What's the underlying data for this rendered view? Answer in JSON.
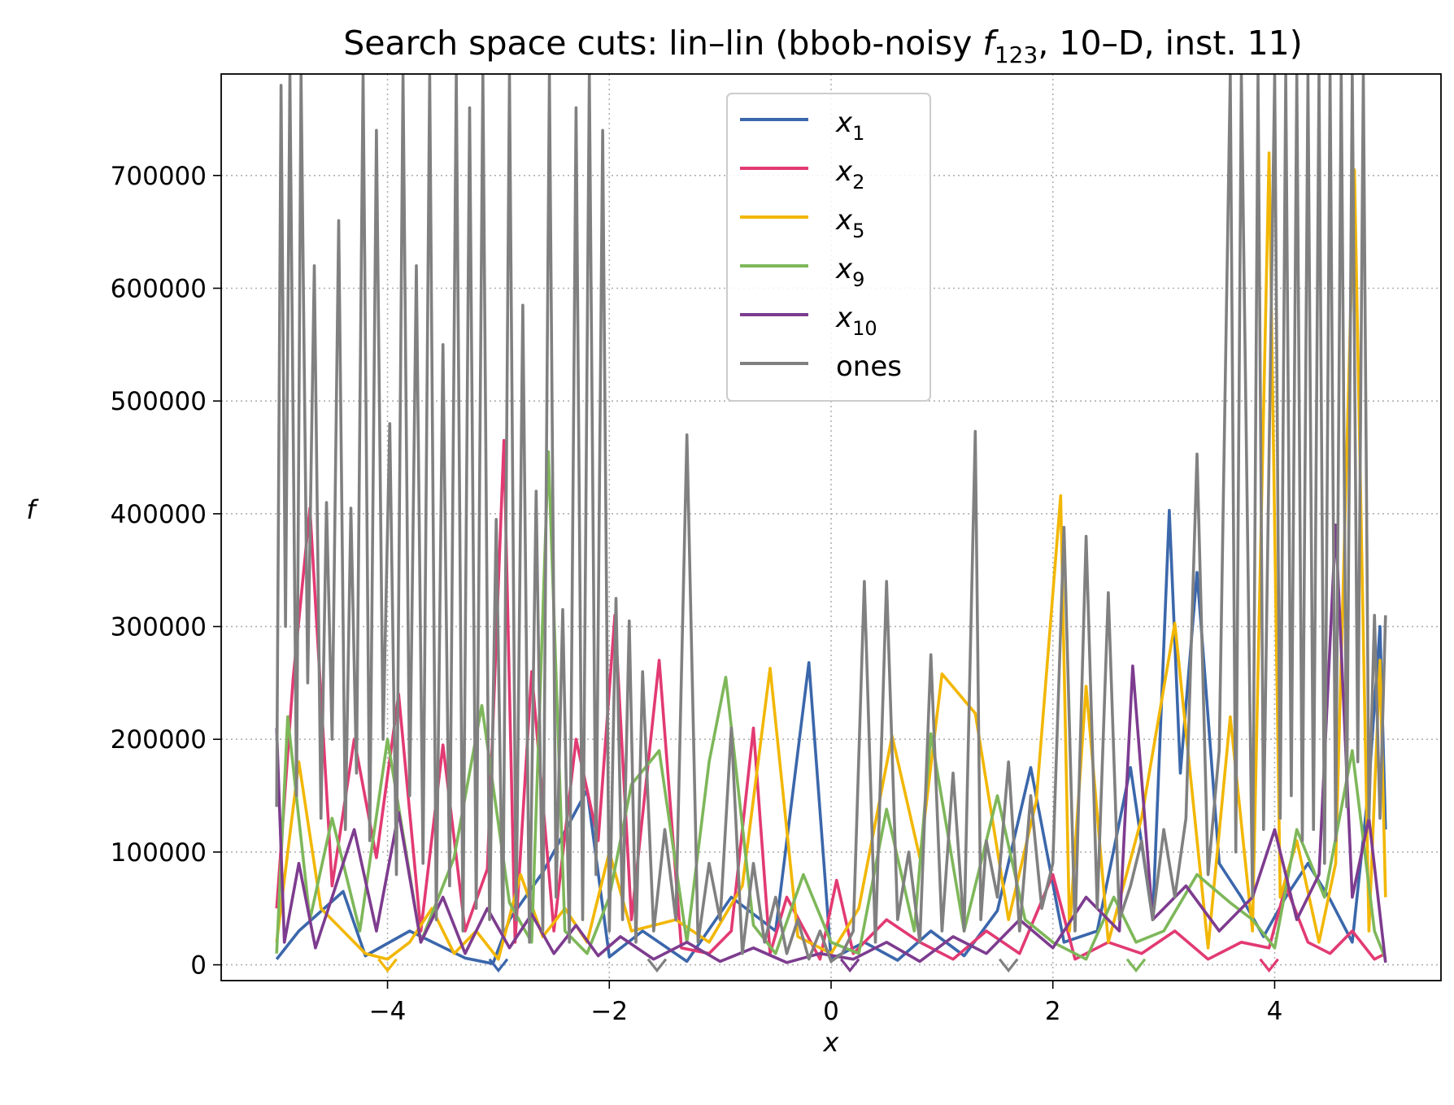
{
  "chart_data": {
    "type": "line",
    "title": "Search space cuts: lin–lin (bbob-noisy f123, 10–D, inst. 11)",
    "title_parts": {
      "prefix": "Search space cuts: lin–lin (bbob-noisy ",
      "func_symbol": "f",
      "func_subscript": "123",
      "suffix": ", 10–D, inst. 11)"
    },
    "xlabel": "x",
    "ylabel": "f",
    "xlim": [
      -5.5,
      5.5
    ],
    "ylim": [
      -14000,
      790000
    ],
    "x_ticks": [
      -4,
      -2,
      0,
      2,
      4
    ],
    "x_tick_labels": [
      "−4",
      "−2",
      "0",
      "2",
      "4"
    ],
    "y_ticks": [
      0,
      100000,
      200000,
      300000,
      400000,
      500000,
      600000,
      700000
    ],
    "y_tick_labels": [
      "0",
      "100000",
      "200000",
      "300000",
      "400000",
      "500000",
      "600000",
      "700000"
    ],
    "grid": true,
    "legend_position": "upper-center",
    "series": [
      {
        "name": "x1",
        "label_base": "x",
        "label_sub": "1",
        "color": "#3b67ab",
        "x": [
          -5,
          -4.8,
          -4.4,
          -4.2,
          -3.8,
          -3.3,
          -3.05,
          -2.9,
          -2.6,
          -2.2,
          -2,
          -1.7,
          -1.3,
          -0.9,
          -0.5,
          -0.2,
          0,
          0.3,
          0.6,
          0.9,
          1.2,
          1.5,
          1.8,
          2.1,
          2.4,
          2.7,
          2.9,
          3.05,
          3.15,
          3.3,
          3.5,
          3.7,
          3.9,
          4.1,
          4.3,
          4.5,
          4.7,
          4.85,
          4.95,
          5
        ],
        "values": [
          5000,
          30000,
          65000,
          8000,
          30000,
          6000,
          1000,
          40000,
          82000,
          155000,
          7000,
          30000,
          3000,
          60000,
          30000,
          268000,
          5000,
          20000,
          4000,
          30000,
          8000,
          48000,
          175000,
          20000,
          30000,
          175000,
          40000,
          403000,
          170000,
          348000,
          90000,
          60000,
          25000,
          60000,
          90000,
          58000,
          20000,
          160000,
          300000,
          120000
        ]
      },
      {
        "name": "x2",
        "label_base": "x",
        "label_sub": "2",
        "color": "#e23a72",
        "x": [
          -5,
          -4.85,
          -4.7,
          -4.5,
          -4.3,
          -4.1,
          -3.9,
          -3.7,
          -3.5,
          -3.3,
          -3.1,
          -2.95,
          -2.85,
          -2.7,
          -2.5,
          -2.3,
          -2.1,
          -1.95,
          -1.8,
          -1.55,
          -1.35,
          -1.1,
          -0.9,
          -0.7,
          -0.55,
          -0.4,
          -0.1,
          0.05,
          0.2,
          0.5,
          0.8,
          1.1,
          1.4,
          1.7,
          2,
          2.2,
          2.5,
          2.8,
          3.1,
          3.4,
          3.7,
          3.95,
          4.1,
          4.3,
          4.5,
          4.7,
          4.9,
          5
        ],
        "values": [
          50000,
          255000,
          405000,
          70000,
          200000,
          95000,
          240000,
          30000,
          195000,
          30000,
          85000,
          465000,
          20000,
          260000,
          30000,
          200000,
          110000,
          310000,
          40000,
          270000,
          15000,
          10000,
          30000,
          210000,
          10000,
          60000,
          5000,
          75000,
          10000,
          40000,
          20000,
          5000,
          30000,
          10000,
          80000,
          5000,
          20000,
          10000,
          30000,
          5000,
          20000,
          15000,
          70000,
          20000,
          10000,
          30000,
          5000,
          10000
        ]
      },
      {
        "name": "x5",
        "label_base": "x",
        "label_sub": "5",
        "color": "#f2b705",
        "x": [
          -5,
          -4.8,
          -4.6,
          -4.4,
          -4.2,
          -4,
          -3.8,
          -3.6,
          -3.4,
          -3.2,
          -3,
          -2.8,
          -2.6,
          -2.4,
          -2.2,
          -2,
          -1.8,
          -1.4,
          -1.1,
          -0.8,
          -0.55,
          -0.3,
          0,
          0.25,
          0.55,
          0.8,
          1,
          1.3,
          1.6,
          1.85,
          2.07,
          2.15,
          2.3,
          2.5,
          2.8,
          3.1,
          3.4,
          3.6,
          3.8,
          3.95,
          4.05,
          4.2,
          4.4,
          4.55,
          4.72,
          4.85,
          4.95,
          5
        ],
        "values": [
          20000,
          180000,
          50000,
          30000,
          10000,
          5000,
          20000,
          50000,
          10000,
          30000,
          5000,
          80000,
          25000,
          50000,
          20000,
          100000,
          30000,
          40000,
          20000,
          70000,
          263000,
          25000,
          10000,
          50000,
          203000,
          95000,
          258000,
          223000,
          40000,
          145000,
          416000,
          30000,
          247000,
          20000,
          130000,
          303000,
          15000,
          220000,
          30000,
          720000,
          60000,
          110000,
          20000,
          90000,
          705000,
          30000,
          270000,
          60000
        ]
      },
      {
        "name": "x9",
        "label_base": "x",
        "label_sub": "9",
        "color": "#7eb75a",
        "x": [
          -5,
          -4.9,
          -4.7,
          -4.5,
          -4.25,
          -4,
          -3.7,
          -3.4,
          -3.15,
          -2.9,
          -2.7,
          -2.55,
          -2.4,
          -2.2,
          -2,
          -1.8,
          -1.55,
          -1.3,
          -1.1,
          -0.95,
          -0.7,
          -0.5,
          -0.25,
          0,
          0.25,
          0.5,
          0.75,
          0.9,
          1.2,
          1.5,
          1.75,
          2,
          2.3,
          2.55,
          2.75,
          3,
          3.3,
          3.6,
          3.8,
          4,
          4.2,
          4.45,
          4.7,
          4.9,
          5
        ],
        "values": [
          10000,
          220000,
          40000,
          130000,
          30000,
          200000,
          20000,
          95000,
          230000,
          55000,
          20000,
          455000,
          30000,
          10000,
          60000,
          160000,
          190000,
          20000,
          180000,
          255000,
          35000,
          10000,
          80000,
          20000,
          10000,
          138000,
          30000,
          205000,
          30000,
          150000,
          40000,
          20000,
          5000,
          60000,
          20000,
          30000,
          80000,
          55000,
          40000,
          15000,
          120000,
          60000,
          190000,
          30000,
          5000
        ]
      },
      {
        "name": "x10",
        "label_base": "x",
        "label_sub": "10",
        "color": "#7d3c8f",
        "x": [
          -5,
          -4.93,
          -4.8,
          -4.65,
          -4.5,
          -4.3,
          -4.1,
          -3.9,
          -3.7,
          -3.5,
          -3.3,
          -3.1,
          -2.9,
          -2.7,
          -2.5,
          -2.3,
          -2.1,
          -1.9,
          -1.6,
          -1.3,
          -1,
          -0.7,
          -0.4,
          -0.1,
          0.2,
          0.5,
          0.8,
          1.1,
          1.4,
          1.7,
          2,
          2.3,
          2.6,
          2.72,
          2.9,
          3.2,
          3.5,
          3.8,
          4,
          4.2,
          4.4,
          4.55,
          4.7,
          4.85,
          5
        ],
        "values": [
          210000,
          20000,
          90000,
          15000,
          60000,
          120000,
          30000,
          135000,
          20000,
          60000,
          10000,
          50000,
          15000,
          45000,
          10000,
          35000,
          8000,
          25000,
          5000,
          20000,
          3000,
          15000,
          2000,
          10000,
          5000,
          20000,
          3000,
          25000,
          10000,
          40000,
          15000,
          60000,
          30000,
          265000,
          40000,
          70000,
          30000,
          60000,
          120000,
          40000,
          80000,
          390000,
          60000,
          130000,
          2000
        ]
      },
      {
        "name": "ones",
        "label_base": "ones",
        "label_sub": "",
        "color": "#808080",
        "x": [
          -5,
          -4.96,
          -4.92,
          -4.88,
          -4.82,
          -4.78,
          -4.72,
          -4.66,
          -4.6,
          -4.55,
          -4.5,
          -4.44,
          -4.38,
          -4.33,
          -4.28,
          -4.22,
          -4.16,
          -4.1,
          -4.04,
          -3.98,
          -3.92,
          -3.86,
          -3.8,
          -3.74,
          -3.68,
          -3.62,
          -3.56,
          -3.5,
          -3.44,
          -3.38,
          -3.32,
          -3.26,
          -3.2,
          -3.14,
          -3.08,
          -3.02,
          -2.96,
          -2.9,
          -2.84,
          -2.78,
          -2.72,
          -2.66,
          -2.6,
          -2.54,
          -2.48,
          -2.42,
          -2.36,
          -2.3,
          -2.24,
          -2.18,
          -2.12,
          -2.06,
          -2,
          -1.94,
          -1.88,
          -1.82,
          -1.76,
          -1.7,
          -1.6,
          -1.5,
          -1.4,
          -1.3,
          -1.2,
          -1.1,
          -1,
          -0.9,
          -0.8,
          -0.7,
          -0.6,
          -0.5,
          -0.4,
          -0.3,
          -0.2,
          -0.1,
          0,
          0.1,
          0.2,
          0.3,
          0.4,
          0.5,
          0.6,
          0.7,
          0.8,
          0.9,
          1,
          1.1,
          1.2,
          1.3,
          1.35,
          1.4,
          1.5,
          1.6,
          1.7,
          1.8,
          1.9,
          2,
          2.1,
          2.2,
          2.3,
          2.4,
          2.5,
          2.6,
          2.7,
          2.8,
          2.9,
          3,
          3.1,
          3.2,
          3.3,
          3.4,
          3.5,
          3.6,
          3.65,
          3.7,
          3.8,
          3.85,
          3.9,
          4,
          4.05,
          4.1,
          4.15,
          4.2,
          4.25,
          4.3,
          4.35,
          4.4,
          4.45,
          4.5,
          4.55,
          4.6,
          4.65,
          4.7,
          4.75,
          4.8,
          4.85,
          4.9,
          4.95,
          5
        ],
        "values": [
          140000,
          780000,
          300000,
          790000,
          150000,
          790000,
          250000,
          620000,
          130000,
          410000,
          200000,
          660000,
          120000,
          405000,
          170000,
          790000,
          110000,
          740000,
          200000,
          480000,
          80000,
          790000,
          150000,
          620000,
          90000,
          790000,
          40000,
          550000,
          70000,
          790000,
          30000,
          760000,
          50000,
          790000,
          40000,
          395000,
          30000,
          790000,
          40000,
          585000,
          20000,
          420000,
          30000,
          790000,
          60000,
          315000,
          20000,
          760000,
          40000,
          790000,
          80000,
          740000,
          30000,
          325000,
          40000,
          305000,
          20000,
          260000,
          30000,
          120000,
          40000,
          470000,
          20000,
          90000,
          40000,
          210000,
          10000,
          90000,
          20000,
          60000,
          10000,
          40000,
          5000,
          30000,
          3000,
          10000,
          30000,
          340000,
          20000,
          340000,
          40000,
          100000,
          20000,
          275000,
          30000,
          170000,
          30000,
          473000,
          40000,
          110000,
          60000,
          180000,
          30000,
          150000,
          50000,
          90000,
          388000,
          30000,
          380000,
          50000,
          330000,
          40000,
          70000,
          110000,
          40000,
          120000,
          60000,
          130000,
          453000,
          80000,
          190000,
          790000,
          100000,
          790000,
          60000,
          790000,
          120000,
          790000,
          130000,
          790000,
          150000,
          790000,
          110000,
          790000,
          120000,
          790000,
          90000,
          790000,
          110000,
          790000,
          140000,
          790000,
          180000,
          790000,
          130000,
          310000,
          130000,
          310000
        ]
      }
    ],
    "optimum_markers": [
      {
        "x": -4.0,
        "color": "#f2b705"
      },
      {
        "x": -3.0,
        "color": "#3b67ab"
      },
      {
        "x": -1.57,
        "color": "#808080"
      },
      {
        "x": 0.17,
        "color": "#7d3c8f"
      },
      {
        "x": 1.6,
        "color": "#808080"
      },
      {
        "x": 2.75,
        "color": "#7eb75a"
      },
      {
        "x": 3.95,
        "color": "#e23a72"
      }
    ]
  }
}
